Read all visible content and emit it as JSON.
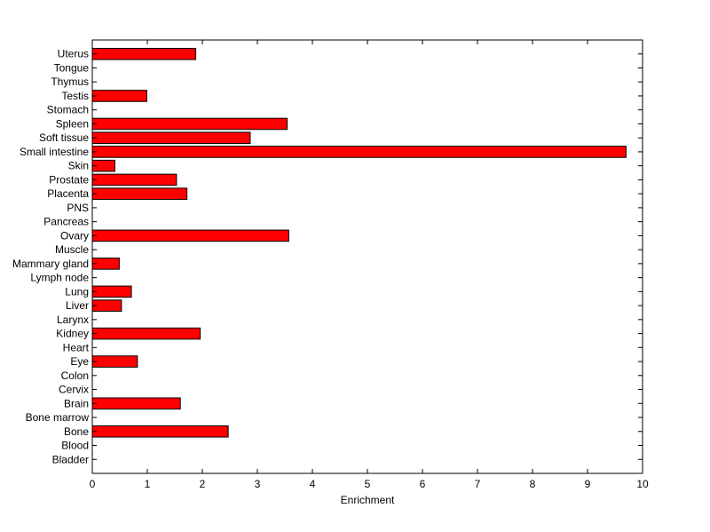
{
  "chart_data": {
    "type": "bar",
    "orientation": "horizontal",
    "title": "",
    "xlabel": "Enrichment",
    "ylabel": "",
    "xlim": [
      0,
      10
    ],
    "x_ticks": [
      0,
      1,
      2,
      3,
      4,
      5,
      6,
      7,
      8,
      9,
      10
    ],
    "grid": false,
    "bar_color": "#ff0000",
    "bar_edge_color": "#000000",
    "categories": [
      "Bladder",
      "Blood",
      "Bone",
      "Bone marrow",
      "Brain",
      "Cervix",
      "Colon",
      "Eye",
      "Heart",
      "Kidney",
      "Larynx",
      "Liver",
      "Lung",
      "Lymph node",
      "Mammary gland",
      "Muscle",
      "Ovary",
      "Pancreas",
      "PNS",
      "Placenta",
      "Prostate",
      "Skin",
      "Small intestine",
      "Soft tissue",
      "Spleen",
      "Stomach",
      "Testis",
      "Thymus",
      "Tongue",
      "Uterus"
    ],
    "values": [
      0,
      0,
      2.47,
      0,
      1.6,
      0,
      0,
      0.82,
      0,
      1.96,
      0,
      0.53,
      0.71,
      0,
      0.49,
      0,
      3.57,
      0,
      0,
      1.72,
      1.53,
      0.41,
      9.7,
      2.87,
      3.54,
      0,
      0.99,
      0,
      0,
      1.88
    ]
  }
}
